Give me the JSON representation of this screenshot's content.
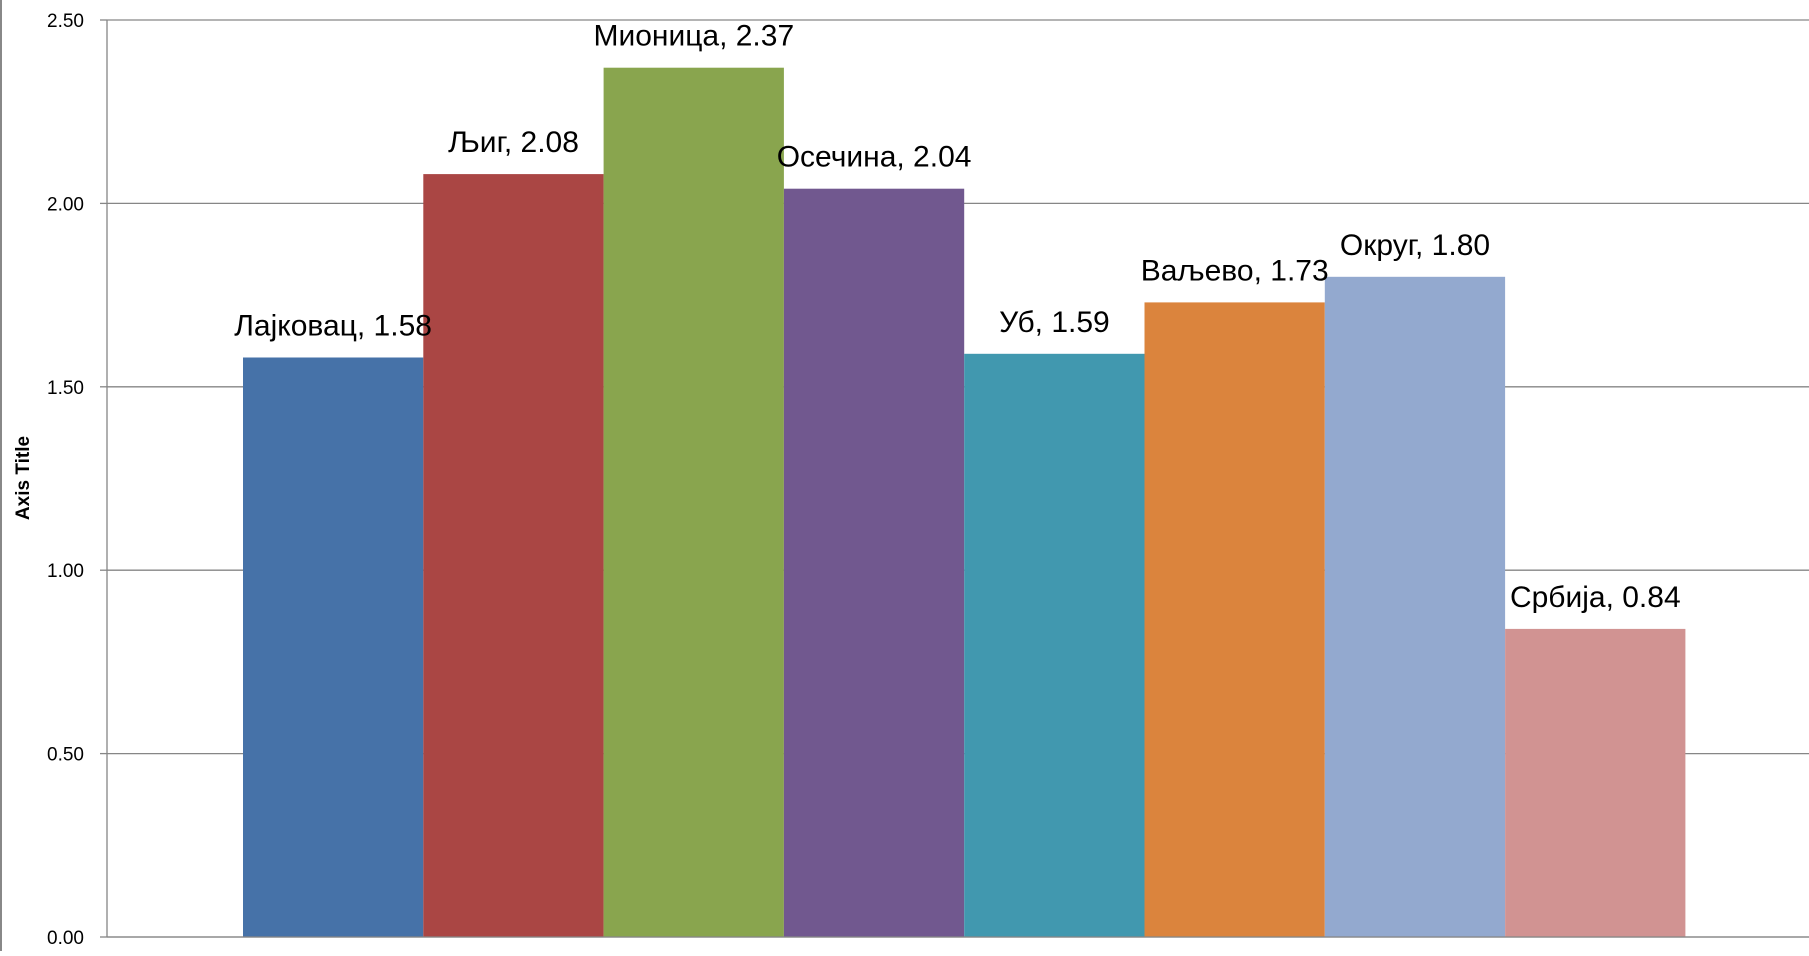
{
  "chart_data": {
    "type": "bar",
    "categories": [
      "Лајковац",
      "Љиг",
      "Мионица",
      "Осечина",
      "Уб",
      "Ваљево",
      "Округ",
      "Србија"
    ],
    "values": [
      1.58,
      2.08,
      2.37,
      2.04,
      1.59,
      1.73,
      1.8,
      0.84
    ],
    "data_labels": [
      "Лајковац, 1.58",
      "Љиг, 2.08",
      "Мионица, 2.37",
      "Осечина, 2.04",
      "Уб, 1.59",
      "Ваљево, 1.73",
      "Округ, 1.80",
      "Србија, 0.84"
    ],
    "colors": [
      "#4672A8",
      "#AA4644",
      "#89A54E",
      "#71588F",
      "#4198AF",
      "#DB843D",
      "#93A9CF",
      "#D19392"
    ],
    "ylabel": "Axis Title",
    "ylim": [
      0,
      2.5
    ],
    "y_ticks": [
      "0.00",
      "0.50",
      "1.00",
      "1.50",
      "2.00",
      "2.50"
    ],
    "grid": true,
    "legend": "none"
  }
}
